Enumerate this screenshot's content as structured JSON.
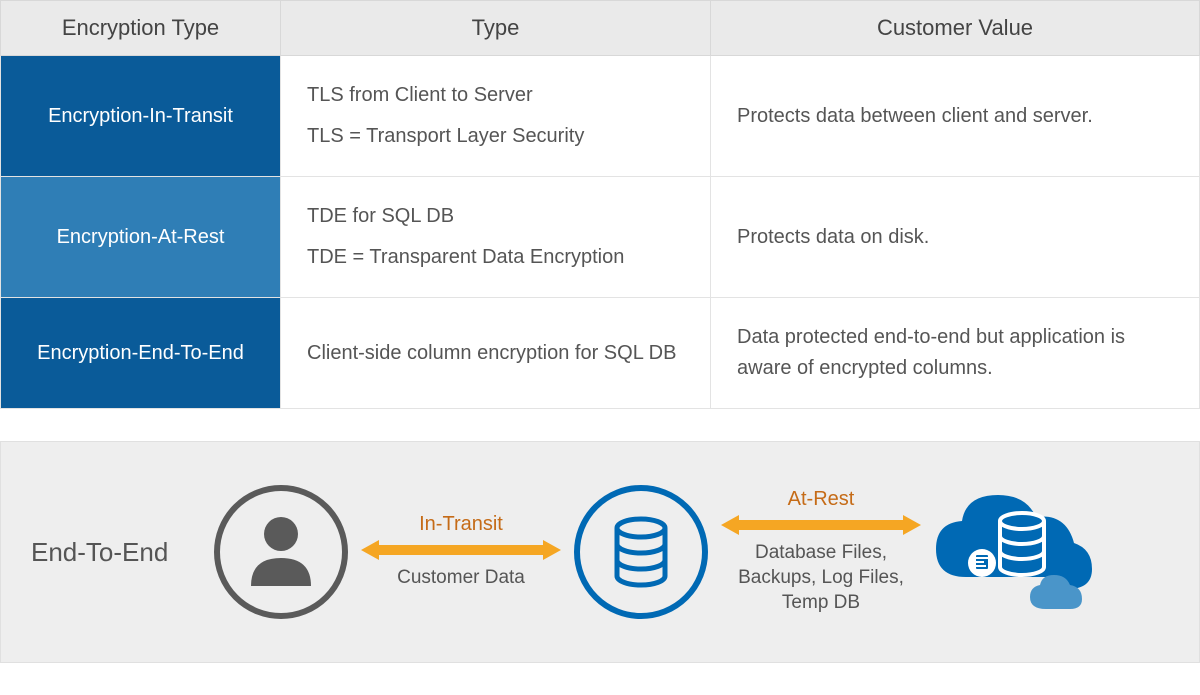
{
  "table": {
    "columns": [
      "Encryption Type",
      "Type",
      "Customer Value"
    ],
    "rows": [
      {
        "label": "Encryption-In-Transit",
        "type_lines": [
          "TLS from Client to Server",
          "TLS = Transport Layer Security"
        ],
        "value": "Protects data between client and server.",
        "label_bg": "#0a5b99"
      },
      {
        "label": "Encryption-At-Rest",
        "type_lines": [
          "TDE for SQL DB",
          "TDE = Transparent Data Encryption"
        ],
        "value": "Protects data on disk.",
        "label_bg": "#2f7eb6"
      },
      {
        "label": "Encryption-End-To-End",
        "type_lines": [
          "Client-side column encryption for SQL DB"
        ],
        "value": "Data protected end-to-end but application is aware of encrypted columns.",
        "label_bg": "#0a5b99"
      }
    ],
    "header_bg": "#eaeaea",
    "border_color": "#d8d8d8",
    "text_color": "#555555",
    "header_fontsize": 22,
    "cell_fontsize": 20
  },
  "diagram": {
    "panel_bg": "#eeeeee",
    "end_to_end_label": "End-To-End",
    "arrow_color": "#f5a623",
    "arrow1": {
      "top": "In-Transit",
      "bottom": "Customer Data"
    },
    "arrow2": {
      "top": "At-Rest",
      "bottom": "Database Files, Backups, Log Files, Temp DB"
    },
    "user_icon_stroke": "#5a5a5a",
    "db_icon_color": "#0069b4",
    "cloud_icon_color": "#0069b4",
    "label_top_color": "#c56b17",
    "label_bottom_color": "#555555"
  }
}
